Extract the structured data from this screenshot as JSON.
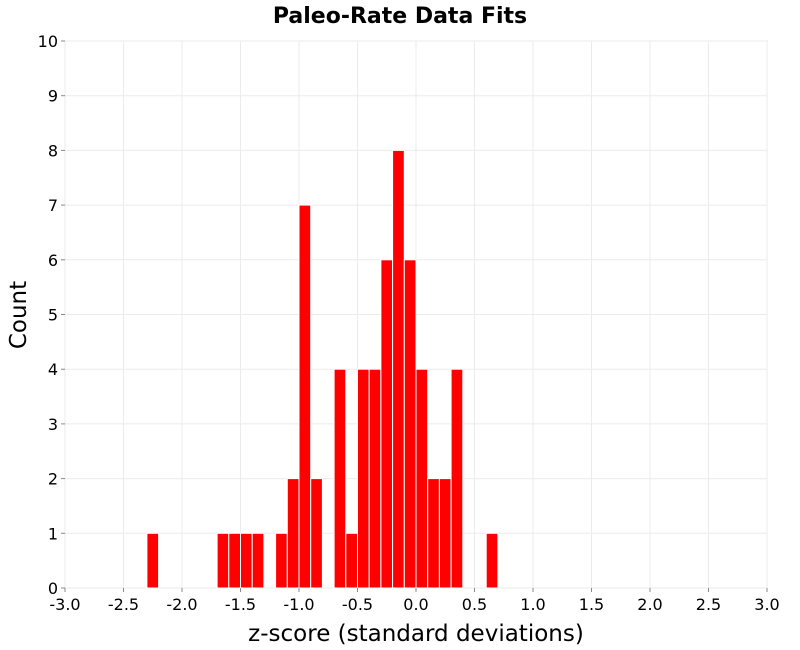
{
  "chart_data": {
    "type": "bar",
    "title": "Paleo-Rate Data Fits",
    "xlabel": "z-score (standard deviations)",
    "ylabel": "Count",
    "xlim": [
      -3.0,
      3.0
    ],
    "ylim": [
      0,
      10
    ],
    "bin_width": 0.1,
    "x_ticks": [
      "-3.0",
      "-2.5",
      "-2.0",
      "-1.5",
      "-1.0",
      "-0.5",
      "0.0",
      "0.5",
      "1.0",
      "1.5",
      "2.0",
      "2.5",
      "3.0"
    ],
    "y_ticks": [
      "0",
      "1",
      "2",
      "3",
      "4",
      "5",
      "6",
      "7",
      "8",
      "9",
      "10"
    ],
    "grid": true,
    "bar_color": "#ff0000",
    "bars": [
      {
        "x_start": -2.3,
        "x_end": -2.2,
        "count": 1
      },
      {
        "x_start": -1.7,
        "x_end": -1.6,
        "count": 1
      },
      {
        "x_start": -1.6,
        "x_end": -1.5,
        "count": 1
      },
      {
        "x_start": -1.5,
        "x_end": -1.4,
        "count": 1
      },
      {
        "x_start": -1.4,
        "x_end": -1.3,
        "count": 1
      },
      {
        "x_start": -1.2,
        "x_end": -1.1,
        "count": 1
      },
      {
        "x_start": -1.1,
        "x_end": -1.0,
        "count": 2
      },
      {
        "x_start": -1.0,
        "x_end": -0.9,
        "count": 7
      },
      {
        "x_start": -0.9,
        "x_end": -0.8,
        "count": 2
      },
      {
        "x_start": -0.7,
        "x_end": -0.6,
        "count": 4
      },
      {
        "x_start": -0.6,
        "x_end": -0.5,
        "count": 1
      },
      {
        "x_start": -0.5,
        "x_end": -0.4,
        "count": 4
      },
      {
        "x_start": -0.4,
        "x_end": -0.3,
        "count": 4
      },
      {
        "x_start": -0.3,
        "x_end": -0.2,
        "count": 6
      },
      {
        "x_start": -0.2,
        "x_end": -0.1,
        "count": 8
      },
      {
        "x_start": -0.1,
        "x_end": 0.0,
        "count": 6
      },
      {
        "x_start": 0.0,
        "x_end": 0.1,
        "count": 4
      },
      {
        "x_start": 0.1,
        "x_end": 0.2,
        "count": 2
      },
      {
        "x_start": 0.2,
        "x_end": 0.3,
        "count": 2
      },
      {
        "x_start": 0.3,
        "x_end": 0.4,
        "count": 4
      },
      {
        "x_start": 0.6,
        "x_end": 0.7,
        "count": 1
      }
    ]
  }
}
